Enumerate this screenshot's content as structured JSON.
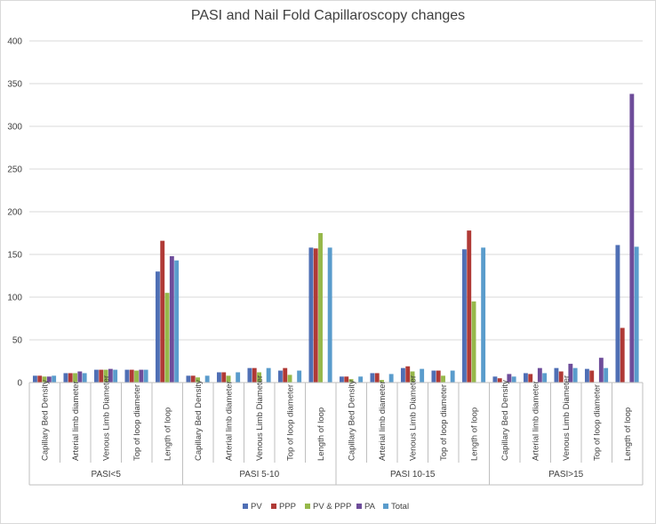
{
  "chart_data": {
    "type": "bar",
    "title": "PASI and Nail Fold Capillaroscopy changes",
    "xlabel": "",
    "ylabel": "",
    "ylim": [
      0,
      400
    ],
    "yticks": [
      0,
      50,
      100,
      150,
      200,
      250,
      300,
      350,
      400
    ],
    "grid": true,
    "legend_position": "bottom",
    "groups": [
      "PASI<5",
      "PASI 5-10",
      "PASI 10-15",
      "PASI>15"
    ],
    "categories": [
      "Capillary Bed Density",
      "Arterial limb diameter",
      "Venous Limb Diameter",
      "Top of loop diameter",
      "Length of loop"
    ],
    "series": [
      {
        "name": "PV",
        "color": "#4f6fb5",
        "values": [
          [
            8,
            11,
            15,
            15,
            130
          ],
          [
            8,
            12,
            17,
            14,
            158
          ],
          [
            7,
            11,
            17,
            14,
            156
          ],
          [
            7,
            11,
            17,
            16,
            161
          ]
        ]
      },
      {
        "name": "PPP",
        "color": "#b03a36",
        "values": [
          [
            8,
            11,
            15,
            15,
            166
          ],
          [
            8,
            12,
            17,
            17,
            157
          ],
          [
            7,
            11,
            19,
            14,
            178
          ],
          [
            5,
            10,
            13,
            14,
            64
          ]
        ]
      },
      {
        "name": "PV & PPP",
        "color": "#96b84a",
        "values": [
          [
            7,
            11,
            15,
            14,
            105
          ],
          [
            6,
            8,
            12,
            9,
            175
          ],
          [
            4,
            3,
            13,
            8,
            95
          ],
          [
            null,
            null,
            null,
            null,
            null
          ]
        ]
      },
      {
        "name": "PA",
        "color": "#6e4d9a",
        "values": [
          [
            7,
            13,
            16,
            15,
            148
          ],
          [
            null,
            null,
            null,
            null,
            null
          ],
          [
            null,
            null,
            null,
            null,
            null
          ],
          [
            10,
            17,
            22,
            29,
            338
          ]
        ]
      },
      {
        "name": "Total",
        "color": "#5a9ccc",
        "values": [
          [
            8,
            11,
            15,
            15,
            143
          ],
          [
            8,
            12,
            17,
            14,
            158
          ],
          [
            7,
            10,
            16,
            14,
            158
          ],
          [
            7,
            11,
            17,
            17,
            159
          ]
        ]
      }
    ]
  }
}
